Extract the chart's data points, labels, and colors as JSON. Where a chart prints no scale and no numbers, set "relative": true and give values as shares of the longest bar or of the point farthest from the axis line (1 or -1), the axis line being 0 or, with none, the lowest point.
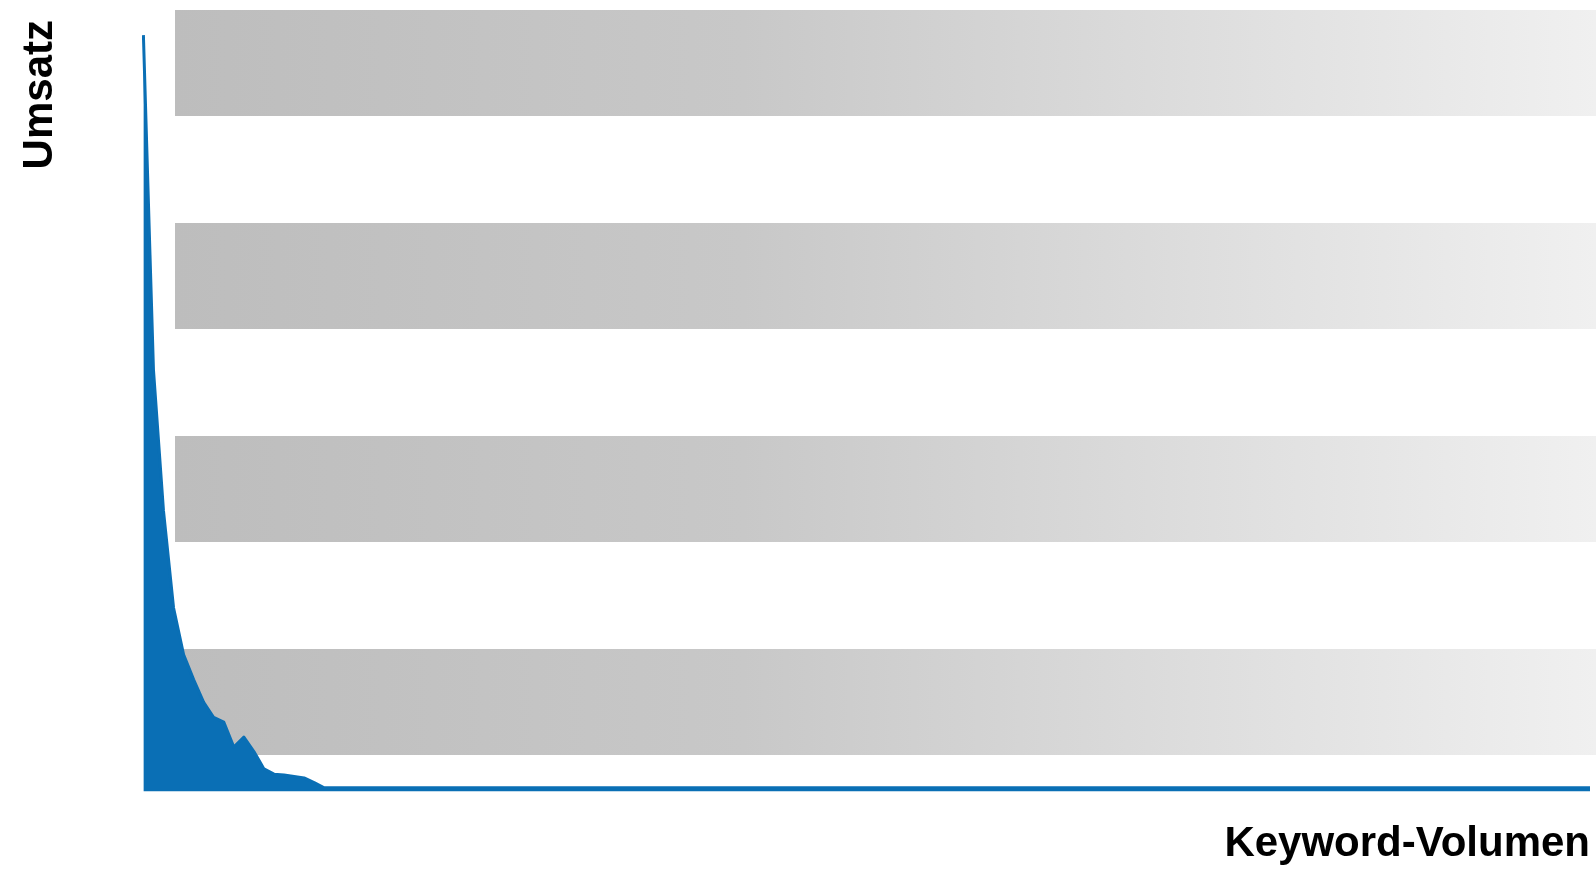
{
  "chart_data": {
    "type": "area",
    "relative": true,
    "xlabel": "Keyword-Volumen",
    "ylabel": "Umsatz",
    "grid": false,
    "legend": false,
    "color": "#0a6fb5",
    "categories": [
      null,
      null,
      null,
      null,
      null,
      null,
      null,
      null,
      null,
      null,
      null,
      null,
      null,
      null,
      null,
      null,
      null,
      null,
      null,
      null,
      null,
      null,
      null,
      null,
      null,
      null,
      null,
      null,
      null,
      null,
      null,
      null,
      null,
      null,
      null,
      null,
      null,
      null,
      null,
      null,
      null,
      null,
      null,
      null,
      null,
      null,
      null,
      null,
      null,
      null,
      null,
      null,
      null,
      null,
      null,
      null,
      null,
      null,
      null,
      null,
      null,
      null,
      null,
      null,
      null,
      null,
      null,
      null,
      null,
      null,
      null,
      null,
      null,
      null,
      null,
      null,
      null,
      null,
      null,
      null,
      null,
      null,
      null,
      null,
      null,
      null,
      null,
      null,
      null,
      null,
      null,
      null,
      null,
      null,
      null,
      null,
      null,
      null,
      null,
      null,
      null,
      null,
      null,
      null,
      null,
      null,
      null,
      null,
      null,
      null,
      null,
      null,
      null,
      null,
      null,
      null,
      null,
      null,
      null,
      null,
      null,
      null,
      null,
      null,
      null,
      null,
      null,
      null,
      null,
      null,
      null,
      null,
      null,
      null,
      null,
      null,
      null,
      null,
      null,
      null,
      null,
      null,
      null,
      null,
      null
    ],
    "values": [
      1.0,
      0.558,
      0.371,
      0.243,
      0.181,
      0.148,
      0.118,
      0.098,
      0.092,
      0.059,
      0.072,
      0.053,
      0.03,
      0.023,
      0.022,
      0.02,
      0.018,
      0.012,
      0.005,
      0.005,
      0.005,
      0.005,
      0.005,
      0.005,
      0.005,
      0.005,
      0.005,
      0.005,
      0.005,
      0.005,
      0.005,
      0.005,
      0.005,
      0.005,
      0.005,
      0.005,
      0.005,
      0.005,
      0.005,
      0.005,
      0.005,
      0.005,
      0.005,
      0.005,
      0.005,
      0.005,
      0.005,
      0.005,
      0.005,
      0.005,
      0.005,
      0.005,
      0.005,
      0.005,
      0.005,
      0.005,
      0.005,
      0.005,
      0.005,
      0.005,
      0.005,
      0.005,
      0.005,
      0.005,
      0.005,
      0.005,
      0.005,
      0.005,
      0.005,
      0.005,
      0.005,
      0.005,
      0.005,
      0.005,
      0.005,
      0.005,
      0.005,
      0.005,
      0.005,
      0.005,
      0.005,
      0.005,
      0.005,
      0.005,
      0.005,
      0.005,
      0.005,
      0.005,
      0.005,
      0.005,
      0.005,
      0.005,
      0.005,
      0.005,
      0.005,
      0.005,
      0.005,
      0.005,
      0.005,
      0.005,
      0.005,
      0.005,
      0.005,
      0.005,
      0.005,
      0.005,
      0.005,
      0.005,
      0.005,
      0.005,
      0.005,
      0.005,
      0.005,
      0.005,
      0.005,
      0.005,
      0.005,
      0.005,
      0.005,
      0.005,
      0.005,
      0.005,
      0.005,
      0.005,
      0.005,
      0.005,
      0.005,
      0.005,
      0.005,
      0.005,
      0.005,
      0.005,
      0.005,
      0.005,
      0.005,
      0.005,
      0.005,
      0.005,
      0.005,
      0.005,
      0.005,
      0.005,
      0.005,
      0.005,
      0.005
    ]
  }
}
